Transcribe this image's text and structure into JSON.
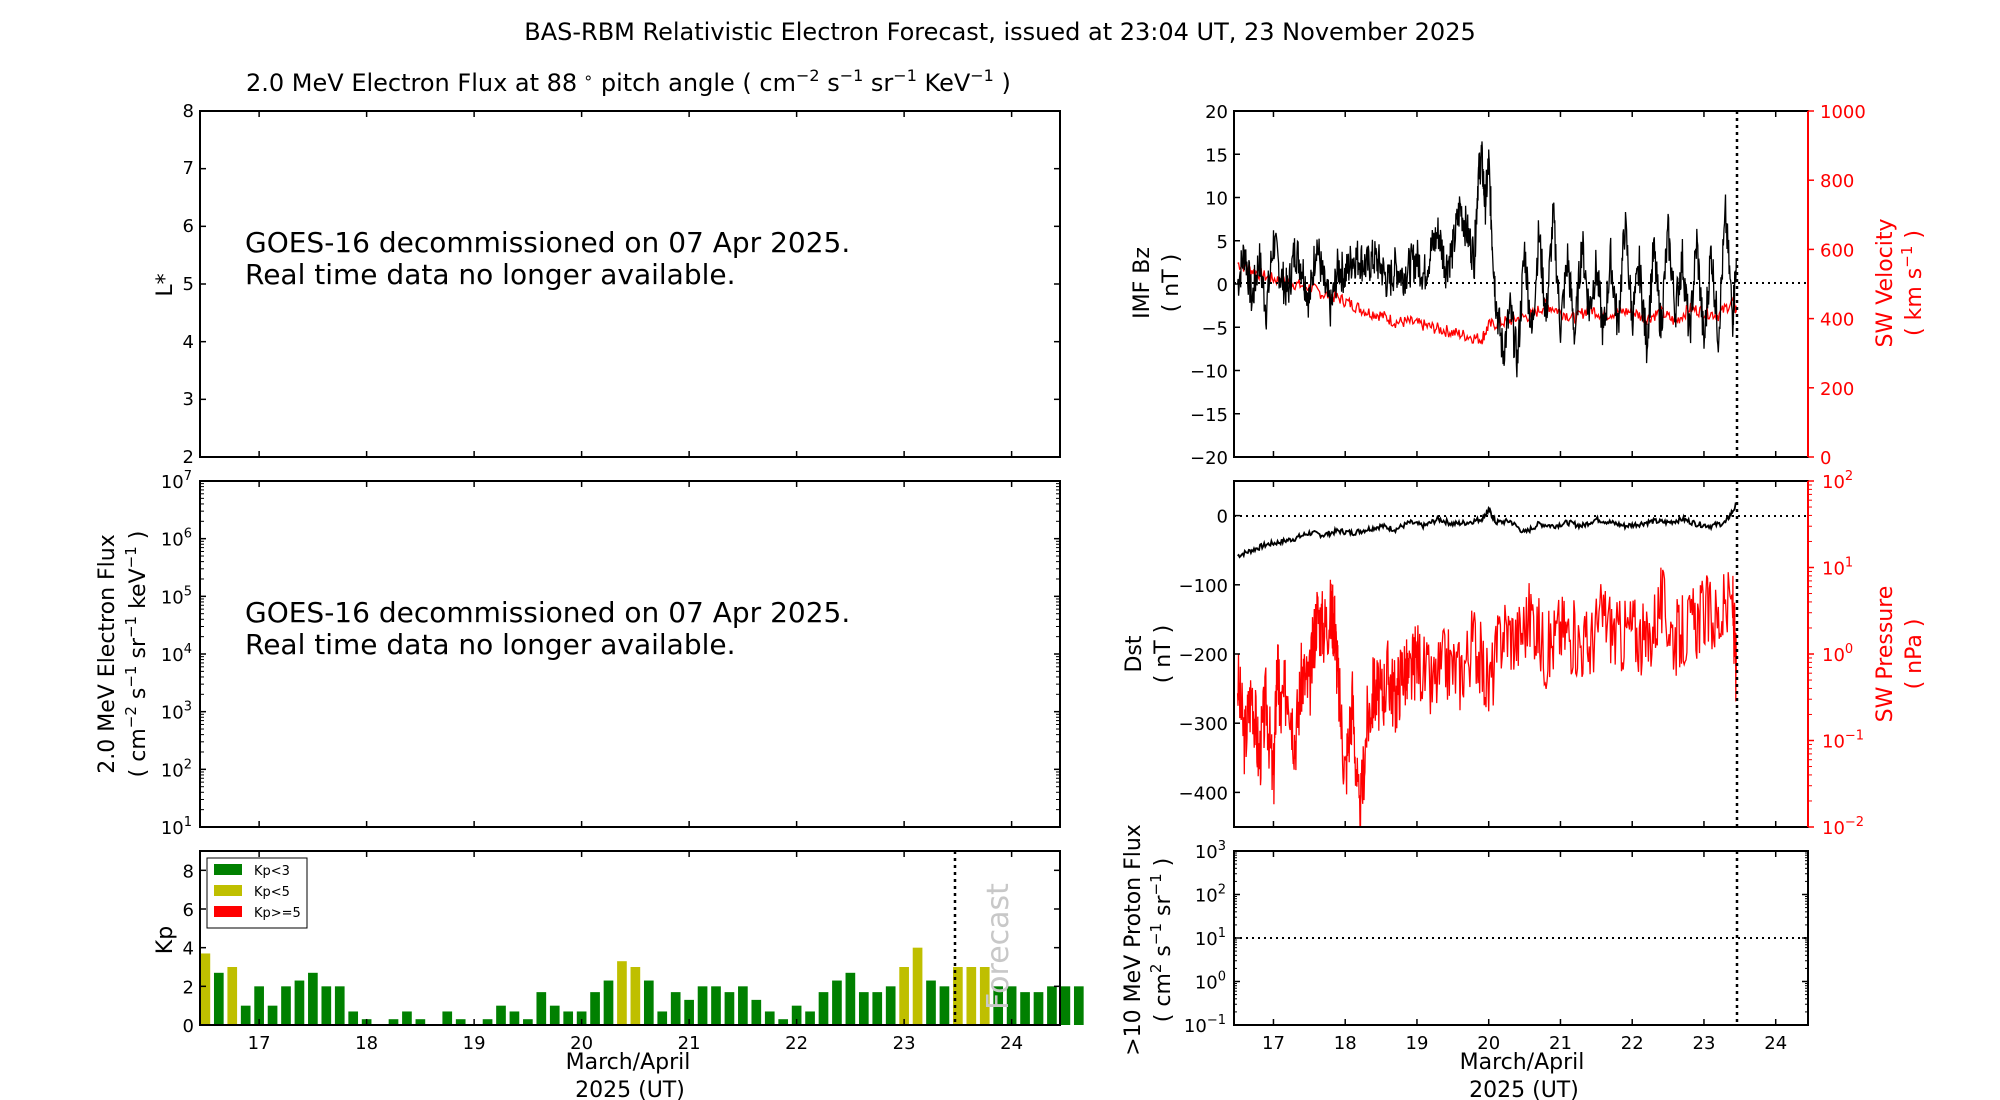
{
  "title": "BAS-RBM Relativistic Electron Forecast, issued at 23:04 UT, 23 November 2025",
  "flux_panel": {
    "title_prefix": "2.0 MeV Electron Flux at 88",
    "title_degree": "∘",
    "title_mid": " pitch angle ( cm",
    "title_sup1": "−2",
    "title_s": " s",
    "title_sup2": "−1",
    "title_sr": " sr",
    "title_sup3": "−1",
    "title_kev": " KeV",
    "title_sup4": "−1",
    "title_end": " )",
    "ylabel": "L*",
    "yticks": [
      "2",
      "3",
      "4",
      "5",
      "6",
      "7",
      "8"
    ],
    "message_line1": "GOES-16 decommissioned on 07 Apr 2025.",
    "message_line2": "Real time data no longer available."
  },
  "electron_panel": {
    "ylabel_line1": "2.0 MeV Electron Flux",
    "ylabel_line2_pre": "( cm",
    "ylabel_sup1": "−2",
    "ylabel_s": " s",
    "ylabel_sup2": "−1",
    "ylabel_sr": " sr",
    "ylabel_sup3": "−1",
    "ylabel_kev": " keV",
    "ylabel_sup4": "−1",
    "ylabel_end": " )",
    "ytick_base": "10",
    "ytick_exps": [
      "1",
      "2",
      "3",
      "4",
      "5",
      "6",
      "7"
    ],
    "message_line1": "GOES-16 decommissioned on 07 Apr 2025.",
    "message_line2": "Real time data no longer available."
  },
  "kp_legend": [
    "Kp<3",
    "Kp<5",
    "Kp>=5"
  ],
  "forecast_label": "Forecast",
  "imf_panel": {
    "ylabel_line1": "IMF Bz",
    "ylabel_line2": "( nT )",
    "right_label_line1": "SW Velocity",
    "right_label_pre": "( km s",
    "right_label_sup": "−1",
    "right_label_end": " )"
  },
  "dst_panel": {
    "ylabel_line1": "Dst",
    "ylabel_line2": "( nT )",
    "right_label_line1": "SW Pressure",
    "right_label_line2": "( nPa )",
    "right_tick_base": "10",
    "right_tick_exps": [
      "−2",
      "−1",
      "0",
      "1",
      "2"
    ]
  },
  "proton_panel": {
    "ylabel_line1": ">10 MeV Proton Flux",
    "ylabel_line2_pre": "( cm",
    "ylabel_sup1": "2",
    "ylabel_s": " s",
    "ylabel_sup2": "−1",
    "ylabel_sr": " sr",
    "ylabel_sup3": "−1",
    "ylabel_end": " )",
    "ytick_base": "10",
    "ytick_exps": [
      "−1",
      "0",
      "1",
      "2",
      "3"
    ]
  },
  "xlabel_line1": "March/April",
  "xlabel_line2": "2025 (UT)",
  "colors": {
    "kp_low": "#008000",
    "kp_mid": "#bfbf00",
    "kp_high": "#ff0000",
    "sw": "#ff0000",
    "axis": "#000000",
    "forecast_text": "#c8c8c8"
  },
  "chart_data": [
    {
      "type": "line",
      "title": "2.0 MeV Electron Flux at 88° pitch angle",
      "ylabel": "L*",
      "ylim": [
        2,
        8
      ],
      "xlim": [
        16.45,
        24.45
      ],
      "series": []
    },
    {
      "type": "line",
      "ylabel": "2.0 MeV Electron Flux",
      "yscale": "log",
      "ylim": [
        10,
        10000000
      ],
      "xlim": [
        16.45,
        24.45
      ],
      "series": []
    },
    {
      "type": "bar",
      "ylabel": "Kp",
      "xlabel": "March/April 2025 (UT)",
      "ylim": [
        0,
        9
      ],
      "xlim": [
        16.45,
        24.45
      ],
      "xticks": [
        17,
        18,
        19,
        20,
        21,
        22,
        23,
        24
      ],
      "yticks": [
        0,
        2,
        4,
        6,
        8
      ],
      "forecast_start": 23.45,
      "bar_width": 0.09,
      "kp": [
        3.7,
        2.7,
        3.0,
        1.0,
        2.0,
        1.0,
        2.0,
        2.3,
        2.7,
        2.0,
        2.0,
        0.7,
        0.3,
        0.0,
        0.3,
        0.7,
        0.3,
        0.0,
        0.7,
        0.3,
        0.0,
        0.3,
        1.0,
        0.7,
        0.3,
        1.7,
        1.0,
        0.7,
        0.7,
        1.7,
        2.3,
        3.3,
        3.0,
        2.3,
        0.7,
        1.7,
        1.3,
        2.0,
        2.0,
        1.7,
        2.0,
        1.3,
        0.7,
        0.3,
        1.0,
        0.7,
        1.7,
        2.3,
        2.7,
        1.7,
        1.7,
        2.0,
        3.0,
        4.0,
        2.3,
        2.0,
        3.0,
        3.0,
        3.0,
        2.0,
        2.0,
        1.7,
        1.7,
        2.0,
        2.0,
        2.0
      ]
    },
    {
      "type": "line",
      "ylabel": "IMF Bz (nT)",
      "ylim": [
        -20,
        20
      ],
      "yticks": [
        -20,
        -15,
        -10,
        -5,
        0,
        5,
        10,
        15,
        20
      ],
      "xlim": [
        16.45,
        24.45
      ],
      "forecast_start": 23.45,
      "series": [
        {
          "name": "IMF Bz",
          "axis": "left",
          "x": [
            16.5,
            16.6,
            16.7,
            16.8,
            16.9,
            17.0,
            17.1,
            17.2,
            17.3,
            17.4,
            17.5,
            17.6,
            17.7,
            17.8,
            17.9,
            18.0,
            18.1,
            18.2,
            18.3,
            18.4,
            18.5,
            18.6,
            18.7,
            18.8,
            18.9,
            19.0,
            19.1,
            19.2,
            19.3,
            19.4,
            19.5,
            19.6,
            19.7,
            19.8,
            19.85,
            19.9,
            19.95,
            20.0,
            20.05,
            20.1,
            20.2,
            20.3,
            20.4,
            20.5,
            20.6,
            20.7,
            20.8,
            20.9,
            21.0,
            21.1,
            21.2,
            21.3,
            21.4,
            21.5,
            21.6,
            21.7,
            21.8,
            21.9,
            22.0,
            22.1,
            22.2,
            22.3,
            22.4,
            22.5,
            22.6,
            22.7,
            22.8,
            22.9,
            23.0,
            23.1,
            23.2,
            23.3,
            23.4,
            23.45
          ],
          "values": [
            0,
            4,
            -2,
            3,
            -3,
            5,
            1,
            -1,
            4,
            2,
            -2,
            5,
            0,
            -3,
            2,
            1,
            3,
            3,
            2,
            3,
            2,
            0,
            2,
            1,
            2,
            3,
            1,
            4,
            6,
            2,
            4,
            9,
            6,
            3,
            12,
            15,
            9,
            14,
            5,
            -2,
            -8,
            -3,
            -9,
            4,
            -6,
            6,
            -4,
            8,
            -5,
            3,
            -6,
            5,
            -3,
            2,
            -6,
            3,
            -5,
            7,
            -4,
            2,
            -7,
            4,
            -5,
            6,
            -3,
            3,
            -6,
            5,
            -7,
            4,
            -6,
            8,
            -4,
            3
          ]
        },
        {
          "name": "SW Velocity",
          "axis": "right",
          "ylim": [
            0,
            1000
          ],
          "yticks": [
            0,
            200,
            400,
            600,
            800,
            1000
          ],
          "x": [
            16.5,
            16.7,
            16.9,
            17.1,
            17.3,
            17.5,
            17.7,
            17.9,
            18.1,
            18.3,
            18.5,
            18.7,
            18.9,
            19.1,
            19.3,
            19.5,
            19.7,
            19.9,
            20.0,
            20.2,
            20.4,
            20.6,
            20.8,
            21.0,
            21.2,
            21.4,
            21.6,
            21.8,
            22.0,
            22.2,
            22.4,
            22.6,
            22.8,
            23.0,
            23.2,
            23.4,
            23.45
          ],
          "values": [
            560,
            540,
            520,
            510,
            500,
            490,
            470,
            460,
            440,
            420,
            410,
            390,
            390,
            380,
            370,
            360,
            350,
            340,
            380,
            390,
            400,
            410,
            440,
            420,
            400,
            430,
            410,
            420,
            420,
            400,
            420,
            390,
            430,
            420,
            410,
            450,
            420
          ]
        }
      ]
    },
    {
      "type": "line",
      "ylabel": "Dst (nT)",
      "ylim": [
        -450,
        50
      ],
      "yticks": [
        -400,
        -300,
        -200,
        -100,
        0
      ],
      "xlim": [
        16.45,
        24.45
      ],
      "forecast_start": 23.45,
      "series": [
        {
          "name": "Dst",
          "axis": "left",
          "x": [
            16.5,
            16.7,
            16.9,
            17.1,
            17.3,
            17.5,
            17.7,
            17.9,
            18.1,
            18.3,
            18.5,
            18.7,
            18.9,
            19.1,
            19.3,
            19.5,
            19.7,
            19.9,
            20.0,
            20.1,
            20.3,
            20.5,
            20.7,
            20.9,
            21.1,
            21.3,
            21.5,
            21.7,
            21.9,
            22.1,
            22.3,
            22.5,
            22.7,
            22.9,
            23.1,
            23.3,
            23.45
          ],
          "values": [
            -58,
            -50,
            -42,
            -38,
            -33,
            -25,
            -28,
            -22,
            -25,
            -20,
            -15,
            -20,
            -10,
            -15,
            -5,
            -12,
            -10,
            -5,
            8,
            -10,
            -8,
            -25,
            -12,
            -15,
            -10,
            -15,
            -5,
            -10,
            -15,
            -12,
            -8,
            -10,
            -5,
            -12,
            -15,
            -10,
            15
          ]
        },
        {
          "name": "SW Pressure",
          "axis": "right",
          "yscale": "log",
          "ylim": [
            0.01,
            100
          ],
          "x": [
            16.5,
            16.6,
            16.7,
            16.8,
            16.9,
            17.0,
            17.05,
            17.1,
            17.2,
            17.3,
            17.4,
            17.5,
            17.6,
            17.7,
            17.8,
            17.85,
            17.9,
            18.0,
            18.1,
            18.2,
            18.3,
            18.4,
            18.5,
            18.6,
            18.7,
            18.8,
            18.9,
            19.0,
            19.2,
            19.4,
            19.6,
            19.8,
            20.0,
            20.2,
            20.4,
            20.6,
            20.8,
            21.0,
            21.2,
            21.4,
            21.6,
            21.8,
            22.0,
            22.2,
            22.4,
            22.6,
            22.8,
            23.0,
            23.2,
            23.4,
            23.45
          ],
          "values": [
            0.5,
            0.1,
            0.4,
            0.06,
            0.3,
            0.03,
            0.8,
            0.2,
            0.5,
            0.1,
            0.6,
            0.4,
            3,
            2,
            3,
            2.5,
            0.5,
            0.04,
            0.3,
            0.01,
            0.15,
            0.4,
            0.3,
            0.6,
            0.3,
            0.7,
            0.5,
            1,
            0.4,
            0.8,
            0.6,
            1.5,
            0.4,
            2,
            1.5,
            3,
            1,
            2,
            1.5,
            1.2,
            3,
            1.5,
            2,
            1.2,
            4,
            1.5,
            2,
            3,
            2.5,
            4,
            0.6
          ]
        }
      ]
    },
    {
      "type": "line",
      "ylabel": ">10 MeV Proton Flux",
      "yscale": "log",
      "ylim": [
        0.1,
        1000
      ],
      "threshold": 10,
      "xlim": [
        16.45,
        24.45
      ],
      "xticks": [
        17,
        18,
        19,
        20,
        21,
        22,
        23,
        24
      ],
      "xlabel": "March/April 2025 (UT)",
      "forecast_start": 23.45,
      "series": []
    }
  ]
}
